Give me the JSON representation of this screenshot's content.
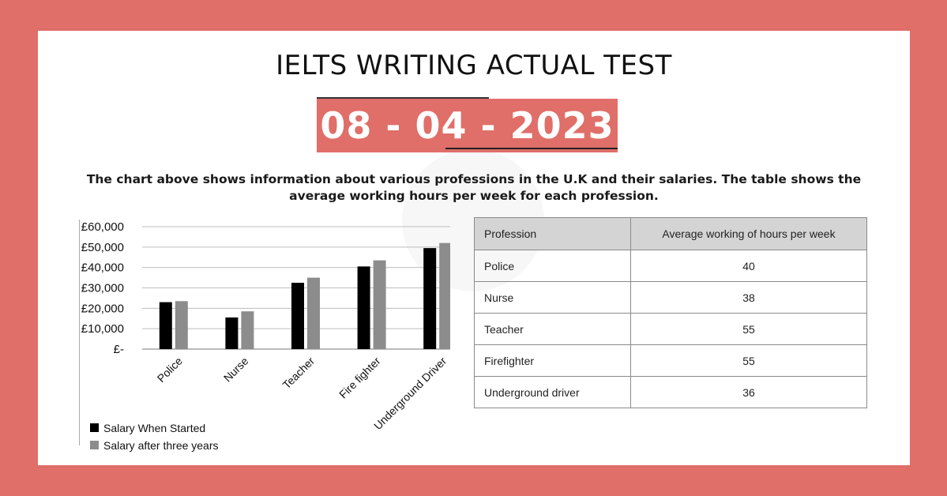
{
  "header": {
    "title": "IELTS WRITING ACTUAL TEST",
    "date": "08 - 04 - 2023"
  },
  "description": "The chart above shows information about various professions in the U.K and their salaries. The table shows the average working hours per week for each profession.",
  "colors": {
    "background": "#e06e69",
    "series_started": "#000000",
    "series_three_years": "#8c8c8c"
  },
  "chart_data": {
    "type": "bar",
    "categories": [
      "Police",
      "Nurse",
      "Teacher",
      "Fire fighter",
      "Underground Driver"
    ],
    "series": [
      {
        "name": "Salary When Started",
        "values": [
          23000,
          15500,
          32500,
          40500,
          49500
        ]
      },
      {
        "name": "Salary after three years",
        "values": [
          23500,
          18500,
          35000,
          43500,
          52000
        ]
      }
    ],
    "yticks": [
      "£-",
      "£10,000",
      "£20,000",
      "£30,000",
      "£40,000",
      "£50,000",
      "£60,000"
    ],
    "ylim": [
      0,
      60000
    ],
    "grid": true,
    "legend": "bottom-left"
  },
  "table": {
    "headers": [
      "Profession",
      "Average working of hours per week"
    ],
    "rows": [
      [
        "Police",
        "40"
      ],
      [
        "Nurse",
        "38"
      ],
      [
        "Teacher",
        "55"
      ],
      [
        "Firefighter",
        "55"
      ],
      [
        "Underground driver",
        "36"
      ]
    ]
  }
}
